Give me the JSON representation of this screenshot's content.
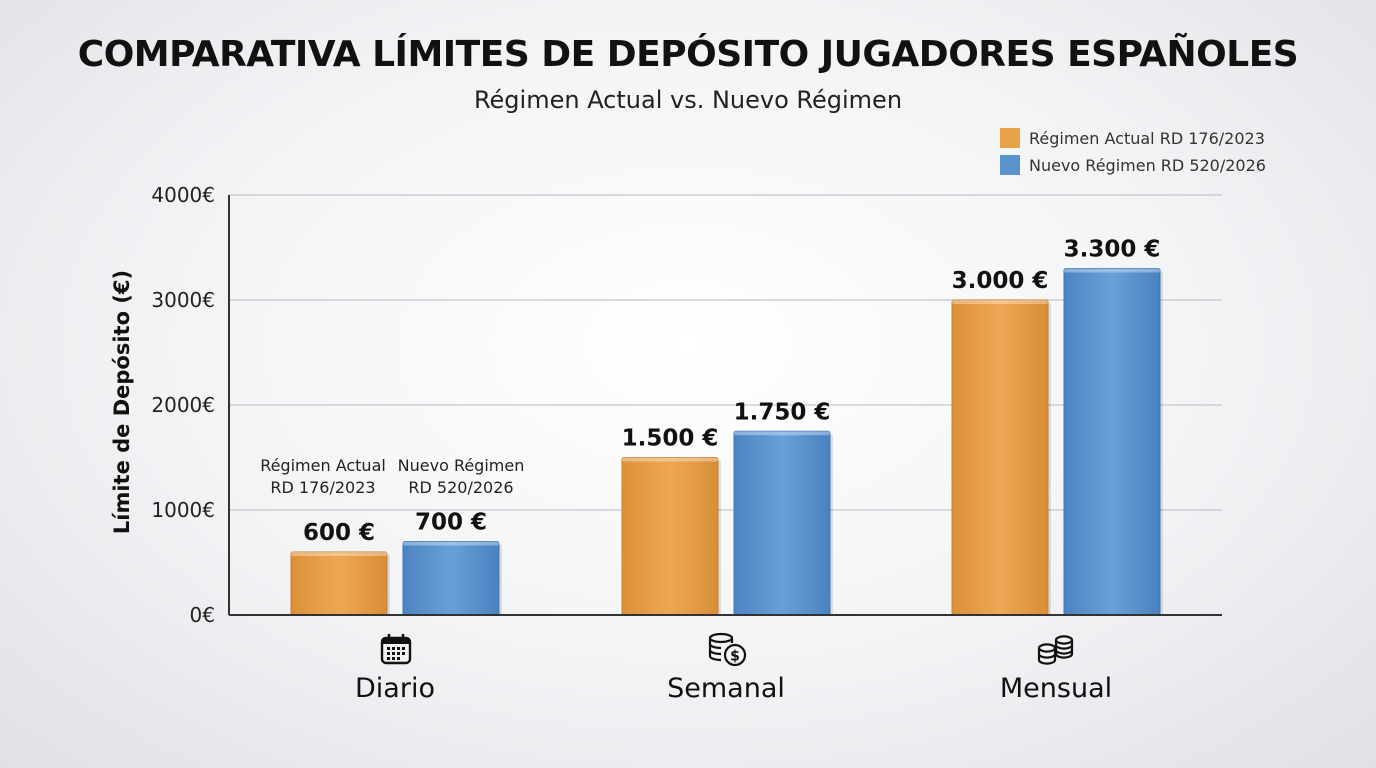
{
  "chart_data": {
    "type": "bar",
    "title": "COMPARATIVA LÍMITES DE DEPÓSITO JUGADORES ESPAÑOLES",
    "subtitle": "Régimen Actual vs. Nuevo Régimen",
    "xlabel": "",
    "ylabel": "Límite de Depósito (€)",
    "ylim": [
      0,
      4000
    ],
    "yticks": [
      0,
      1000,
      2000,
      3000,
      4000
    ],
    "ytick_labels": [
      "0€",
      "1000€",
      "2000€",
      "3000€",
      "4000€"
    ],
    "grid": true,
    "legend_position": "top-right",
    "categories": [
      "Diario",
      "Semanal",
      "Mensual"
    ],
    "category_icons": [
      "calendar-icon",
      "coins-dollar-icon",
      "coins-stack-icon"
    ],
    "series": [
      {
        "name": "Régimen Actual RD 176/2023",
        "color": "#e8a24a",
        "values": [
          600,
          1500,
          3000
        ],
        "value_labels": [
          "600 €",
          "1.500 €",
          "3.000 €"
        ]
      },
      {
        "name": "Nuevo Régimen RD 520/2026",
        "color": "#5b93cf",
        "values": [
          700,
          1750,
          3300
        ],
        "value_labels": [
          "700 €",
          "1.750 €",
          "3.300 €"
        ]
      }
    ],
    "annotations": [
      [
        "Régimen Actual",
        "RD 176/2023"
      ],
      [
        "Nuevo Régimen",
        "RD 520/2026"
      ]
    ]
  }
}
